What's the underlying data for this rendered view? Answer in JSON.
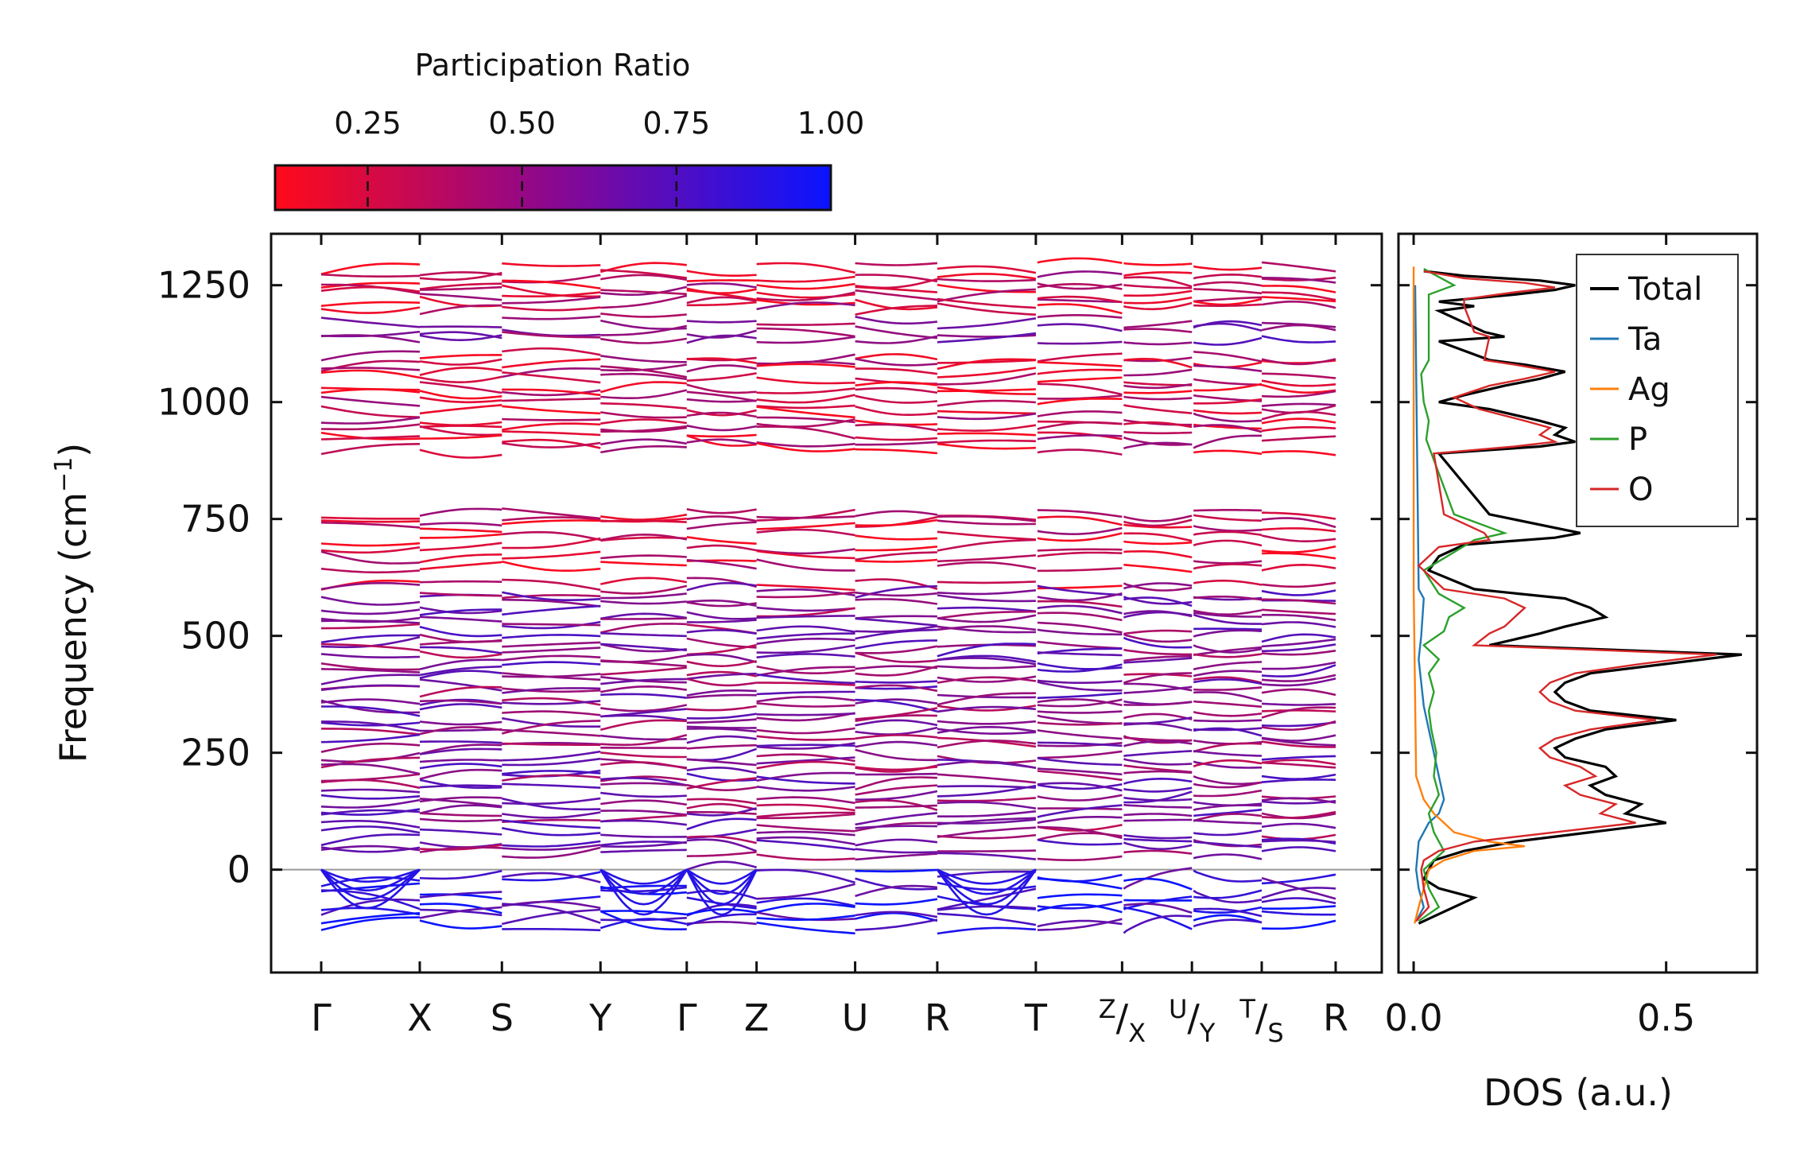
{
  "chart_data": [
    {
      "type": "line",
      "title": "",
      "ylabel": "Frequency (cm",
      "ylabel_sup": "−1",
      "ylabel_close": ")",
      "ylim": [
        -220,
        1360
      ],
      "yticks": [
        0,
        250,
        500,
        750,
        1000,
        1250
      ],
      "ytick_labels": [
        "0",
        "250",
        "500",
        "750",
        "1000",
        "1250"
      ],
      "xticks": [
        {
          "label": "Γ"
        },
        {
          "label": "X"
        },
        {
          "label": "S"
        },
        {
          "label": "Y"
        },
        {
          "label": "Γ"
        },
        {
          "label": "Z"
        },
        {
          "label": "U"
        },
        {
          "label": "R"
        },
        {
          "label": "T"
        },
        {
          "label": "Z",
          "sub": "X"
        },
        {
          "label": "U",
          "sub": "Y"
        },
        {
          "label": "T",
          "sub": "S"
        },
        {
          "label": "R"
        }
      ],
      "segment_lengths": [
        1.2,
        1.0,
        1.2,
        1.05,
        0.85,
        1.2,
        1.0,
        1.2,
        1.05,
        0.85,
        0.85,
        0.9
      ],
      "zero_line": 0,
      "band_families": [
        {
          "base": [
            1285,
            1270,
            1255,
            1240,
            1228,
            1215,
            1200
          ],
          "pr": 0.3
        },
        {
          "base": [
            1170,
            1150,
            1140
          ],
          "pr": 0.55
        },
        {
          "base": [
            1095,
            1080,
            1065,
            1050,
            1030,
            1015,
            1000,
            980,
            965,
            950,
            935,
            915,
            900
          ],
          "pr": 0.28
        },
        {
          "base": [
            760,
            745,
            735,
            710,
            695,
            670,
            650,
            612
          ],
          "pr": 0.25
        },
        {
          "base": [
            595,
            580,
            565,
            550,
            535,
            515,
            500,
            485,
            470,
            455,
            440,
            425,
            410,
            395,
            380,
            365,
            350,
            335,
            320,
            305,
            290,
            275,
            260,
            245,
            230,
            215,
            200,
            185,
            170,
            155,
            140,
            125,
            110,
            95,
            80,
            65,
            50,
            35
          ],
          "pr": 0.55
        },
        {
          "base": [
            -20,
            -40,
            -60,
            -75,
            -90,
            -105,
            -120
          ],
          "pr": 0.85
        }
      ]
    },
    {
      "type": "line",
      "xlabel": "DOS (a.u.)",
      "xlim": [
        -0.03,
        0.68
      ],
      "xticks": [
        0.0,
        0.5
      ],
      "xtick_labels": [
        "0.0",
        "0.5"
      ],
      "ylim": [
        -220,
        1360
      ],
      "legend": [
        "Total",
        "Ta",
        "Ag",
        "P",
        "O"
      ],
      "legend_position": "top-right",
      "series": [
        {
          "name": "Total",
          "color": "#000000",
          "peaks": [
            [
              1280,
              0.02
            ],
            [
              1270,
              0.1
            ],
            [
              1260,
              0.25
            ],
            [
              1250,
              0.32
            ],
            [
              1240,
              0.28
            ],
            [
              1230,
              0.2
            ],
            [
              1215,
              0.05
            ],
            [
              1205,
              0.12
            ],
            [
              1195,
              0.05
            ],
            [
              1150,
              0.14
            ],
            [
              1140,
              0.18
            ],
            [
              1130,
              0.05
            ],
            [
              1090,
              0.15
            ],
            [
              1080,
              0.22
            ],
            [
              1065,
              0.3
            ],
            [
              1050,
              0.25
            ],
            [
              1035,
              0.18
            ],
            [
              1015,
              0.1
            ],
            [
              1000,
              0.05
            ],
            [
              985,
              0.15
            ],
            [
              960,
              0.25
            ],
            [
              945,
              0.3
            ],
            [
              930,
              0.28
            ],
            [
              915,
              0.32
            ],
            [
              905,
              0.25
            ],
            [
              890,
              0.05
            ],
            [
              760,
              0.15
            ],
            [
              720,
              0.33
            ],
            [
              710,
              0.28
            ],
            [
              695,
              0.1
            ],
            [
              670,
              0.05
            ],
            [
              640,
              0.03
            ],
            [
              600,
              0.12
            ],
            [
              580,
              0.3
            ],
            [
              560,
              0.35
            ],
            [
              540,
              0.38
            ],
            [
              520,
              0.3
            ],
            [
              505,
              0.25
            ],
            [
              480,
              0.15
            ],
            [
              460,
              0.65
            ],
            [
              440,
              0.5
            ],
            [
              420,
              0.35
            ],
            [
              400,
              0.3
            ],
            [
              380,
              0.28
            ],
            [
              360,
              0.3
            ],
            [
              340,
              0.35
            ],
            [
              320,
              0.52
            ],
            [
              300,
              0.38
            ],
            [
              280,
              0.32
            ],
            [
              260,
              0.28
            ],
            [
              240,
              0.3
            ],
            [
              220,
              0.38
            ],
            [
              200,
              0.4
            ],
            [
              180,
              0.35
            ],
            [
              160,
              0.38
            ],
            [
              140,
              0.45
            ],
            [
              120,
              0.42
            ],
            [
              100,
              0.5
            ],
            [
              80,
              0.35
            ],
            [
              60,
              0.2
            ],
            [
              40,
              0.1
            ],
            [
              20,
              0.04
            ],
            [
              0,
              0.03
            ],
            [
              -20,
              0.02
            ],
            [
              -40,
              0.05
            ],
            [
              -60,
              0.12
            ],
            [
              -80,
              0.08
            ],
            [
              -100,
              0.04
            ],
            [
              -115,
              0.01
            ]
          ]
        },
        {
          "name": "Ta",
          "color": "#1f77b4",
          "peaks": [
            [
              1250,
              0.003
            ],
            [
              600,
              0.01
            ],
            [
              580,
              0.02
            ],
            [
              500,
              0.015
            ],
            [
              450,
              0.01
            ],
            [
              400,
              0.015
            ],
            [
              350,
              0.02
            ],
            [
              300,
              0.03
            ],
            [
              250,
              0.04
            ],
            [
              200,
              0.05
            ],
            [
              150,
              0.06
            ],
            [
              120,
              0.05
            ],
            [
              100,
              0.03
            ],
            [
              60,
              0.01
            ],
            [
              0,
              0.005
            ],
            [
              -40,
              0.01
            ],
            [
              -80,
              0.02
            ],
            [
              -110,
              0.005
            ]
          ]
        },
        {
          "name": "Ag",
          "color": "#ff7f0e",
          "peaks": [
            [
              1290,
              0.0
            ],
            [
              600,
              0.0
            ],
            [
              200,
              0.005
            ],
            [
              150,
              0.02
            ],
            [
              120,
              0.04
            ],
            [
              100,
              0.06
            ],
            [
              80,
              0.08
            ],
            [
              60,
              0.15
            ],
            [
              50,
              0.22
            ],
            [
              40,
              0.12
            ],
            [
              20,
              0.06
            ],
            [
              0,
              0.03
            ],
            [
              -40,
              0.02
            ],
            [
              -80,
              0.01
            ],
            [
              -115,
              0.002
            ]
          ]
        },
        {
          "name": "P",
          "color": "#2ca02c",
          "peaks": [
            [
              1285,
              0.02
            ],
            [
              1250,
              0.08
            ],
            [
              1230,
              0.03
            ],
            [
              1140,
              0.03
            ],
            [
              1090,
              0.03
            ],
            [
              1060,
              0.015
            ],
            [
              1000,
              0.02
            ],
            [
              960,
              0.03
            ],
            [
              920,
              0.025
            ],
            [
              760,
              0.08
            ],
            [
              720,
              0.18
            ],
            [
              705,
              0.12
            ],
            [
              640,
              0.02
            ],
            [
              590,
              0.05
            ],
            [
              560,
              0.1
            ],
            [
              540,
              0.07
            ],
            [
              510,
              0.06
            ],
            [
              480,
              0.02
            ],
            [
              450,
              0.05
            ],
            [
              420,
              0.03
            ],
            [
              380,
              0.04
            ],
            [
              340,
              0.03
            ],
            [
              300,
              0.035
            ],
            [
              250,
              0.045
            ],
            [
              200,
              0.04
            ],
            [
              160,
              0.05
            ],
            [
              120,
              0.03
            ],
            [
              80,
              0.04
            ],
            [
              40,
              0.06
            ],
            [
              0,
              0.02
            ],
            [
              -40,
              0.03
            ],
            [
              -80,
              0.05
            ],
            [
              -110,
              0.01
            ]
          ]
        },
        {
          "name": "O",
          "color": "#d62728",
          "peaks": [
            [
              1280,
              0.02
            ],
            [
              1265,
              0.1
            ],
            [
              1255,
              0.22
            ],
            [
              1245,
              0.28
            ],
            [
              1235,
              0.2
            ],
            [
              1220,
              0.1
            ],
            [
              1205,
              0.1
            ],
            [
              1150,
              0.12
            ],
            [
              1140,
              0.15
            ],
            [
              1090,
              0.14
            ],
            [
              1080,
              0.2
            ],
            [
              1065,
              0.28
            ],
            [
              1050,
              0.22
            ],
            [
              1035,
              0.15
            ],
            [
              1010,
              0.08
            ],
            [
              985,
              0.13
            ],
            [
              960,
              0.22
            ],
            [
              945,
              0.27
            ],
            [
              930,
              0.25
            ],
            [
              915,
              0.28
            ],
            [
              905,
              0.2
            ],
            [
              890,
              0.04
            ],
            [
              760,
              0.06
            ],
            [
              720,
              0.14
            ],
            [
              705,
              0.15
            ],
            [
              690,
              0.05
            ],
            [
              650,
              0.01
            ],
            [
              600,
              0.06
            ],
            [
              580,
              0.18
            ],
            [
              560,
              0.22
            ],
            [
              540,
              0.2
            ],
            [
              520,
              0.18
            ],
            [
              505,
              0.15
            ],
            [
              480,
              0.12
            ],
            [
              460,
              0.6
            ],
            [
              440,
              0.45
            ],
            [
              420,
              0.32
            ],
            [
              400,
              0.27
            ],
            [
              380,
              0.25
            ],
            [
              360,
              0.27
            ],
            [
              340,
              0.32
            ],
            [
              320,
              0.48
            ],
            [
              300,
              0.35
            ],
            [
              280,
              0.28
            ],
            [
              260,
              0.25
            ],
            [
              240,
              0.27
            ],
            [
              220,
              0.33
            ],
            [
              200,
              0.36
            ],
            [
              180,
              0.3
            ],
            [
              160,
              0.33
            ],
            [
              140,
              0.4
            ],
            [
              120,
              0.37
            ],
            [
              100,
              0.44
            ],
            [
              80,
              0.28
            ],
            [
              60,
              0.12
            ],
            [
              40,
              0.05
            ],
            [
              20,
              0.02
            ],
            [
              0,
              0.015
            ],
            [
              -40,
              0.02
            ],
            [
              -80,
              0.03
            ],
            [
              -110,
              0.005
            ]
          ]
        }
      ]
    },
    {
      "type": "colorbar",
      "title": "Participation Ratio",
      "range": [
        0.1,
        1.0
      ],
      "ticks": [
        0.25,
        0.5,
        0.75,
        1.0
      ],
      "tick_labels": [
        "0.25",
        "0.50",
        "0.75",
        "1.00"
      ],
      "colors": {
        "low": "#ff0a1a",
        "mid": "#7a0aa8",
        "high": "#0a14ff"
      }
    }
  ]
}
